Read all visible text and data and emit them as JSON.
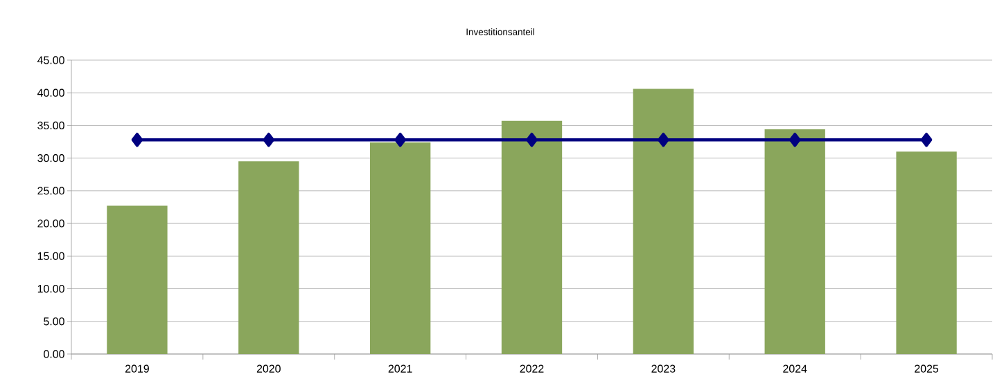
{
  "chart_data": {
    "type": "bar",
    "title": "Investitionsanteil",
    "categories": [
      "2019",
      "2020",
      "2021",
      "2022",
      "2023",
      "2024",
      "2025"
    ],
    "series": [
      {
        "color": "#8aa65c",
        "values": [
          22.7,
          29.5,
          32.4,
          35.7,
          40.6,
          34.4,
          31.0
        ]
      },
      {
        "type": "line",
        "color": "#000080",
        "marker": "diamond",
        "line_style": "solid",
        "values": [
          32.8,
          32.8,
          32.8,
          32.8,
          32.8,
          32.8,
          32.8
        ]
      }
    ],
    "ylim": [
      0,
      45
    ],
    "yticks": [
      {
        "value": 0,
        "label": "0.00"
      },
      {
        "value": 5,
        "label": "5.00"
      },
      {
        "value": 10,
        "label": "10.00"
      },
      {
        "value": 15,
        "label": "15.00"
      },
      {
        "value": 20,
        "label": "20.00"
      },
      {
        "value": 25,
        "label": "25.00"
      },
      {
        "value": 30,
        "label": "30.00"
      },
      {
        "value": 35,
        "label": "35.00"
      },
      {
        "value": 40,
        "label": "40.00"
      },
      {
        "value": 45,
        "label": "45.00"
      }
    ],
    "grid": "y"
  }
}
